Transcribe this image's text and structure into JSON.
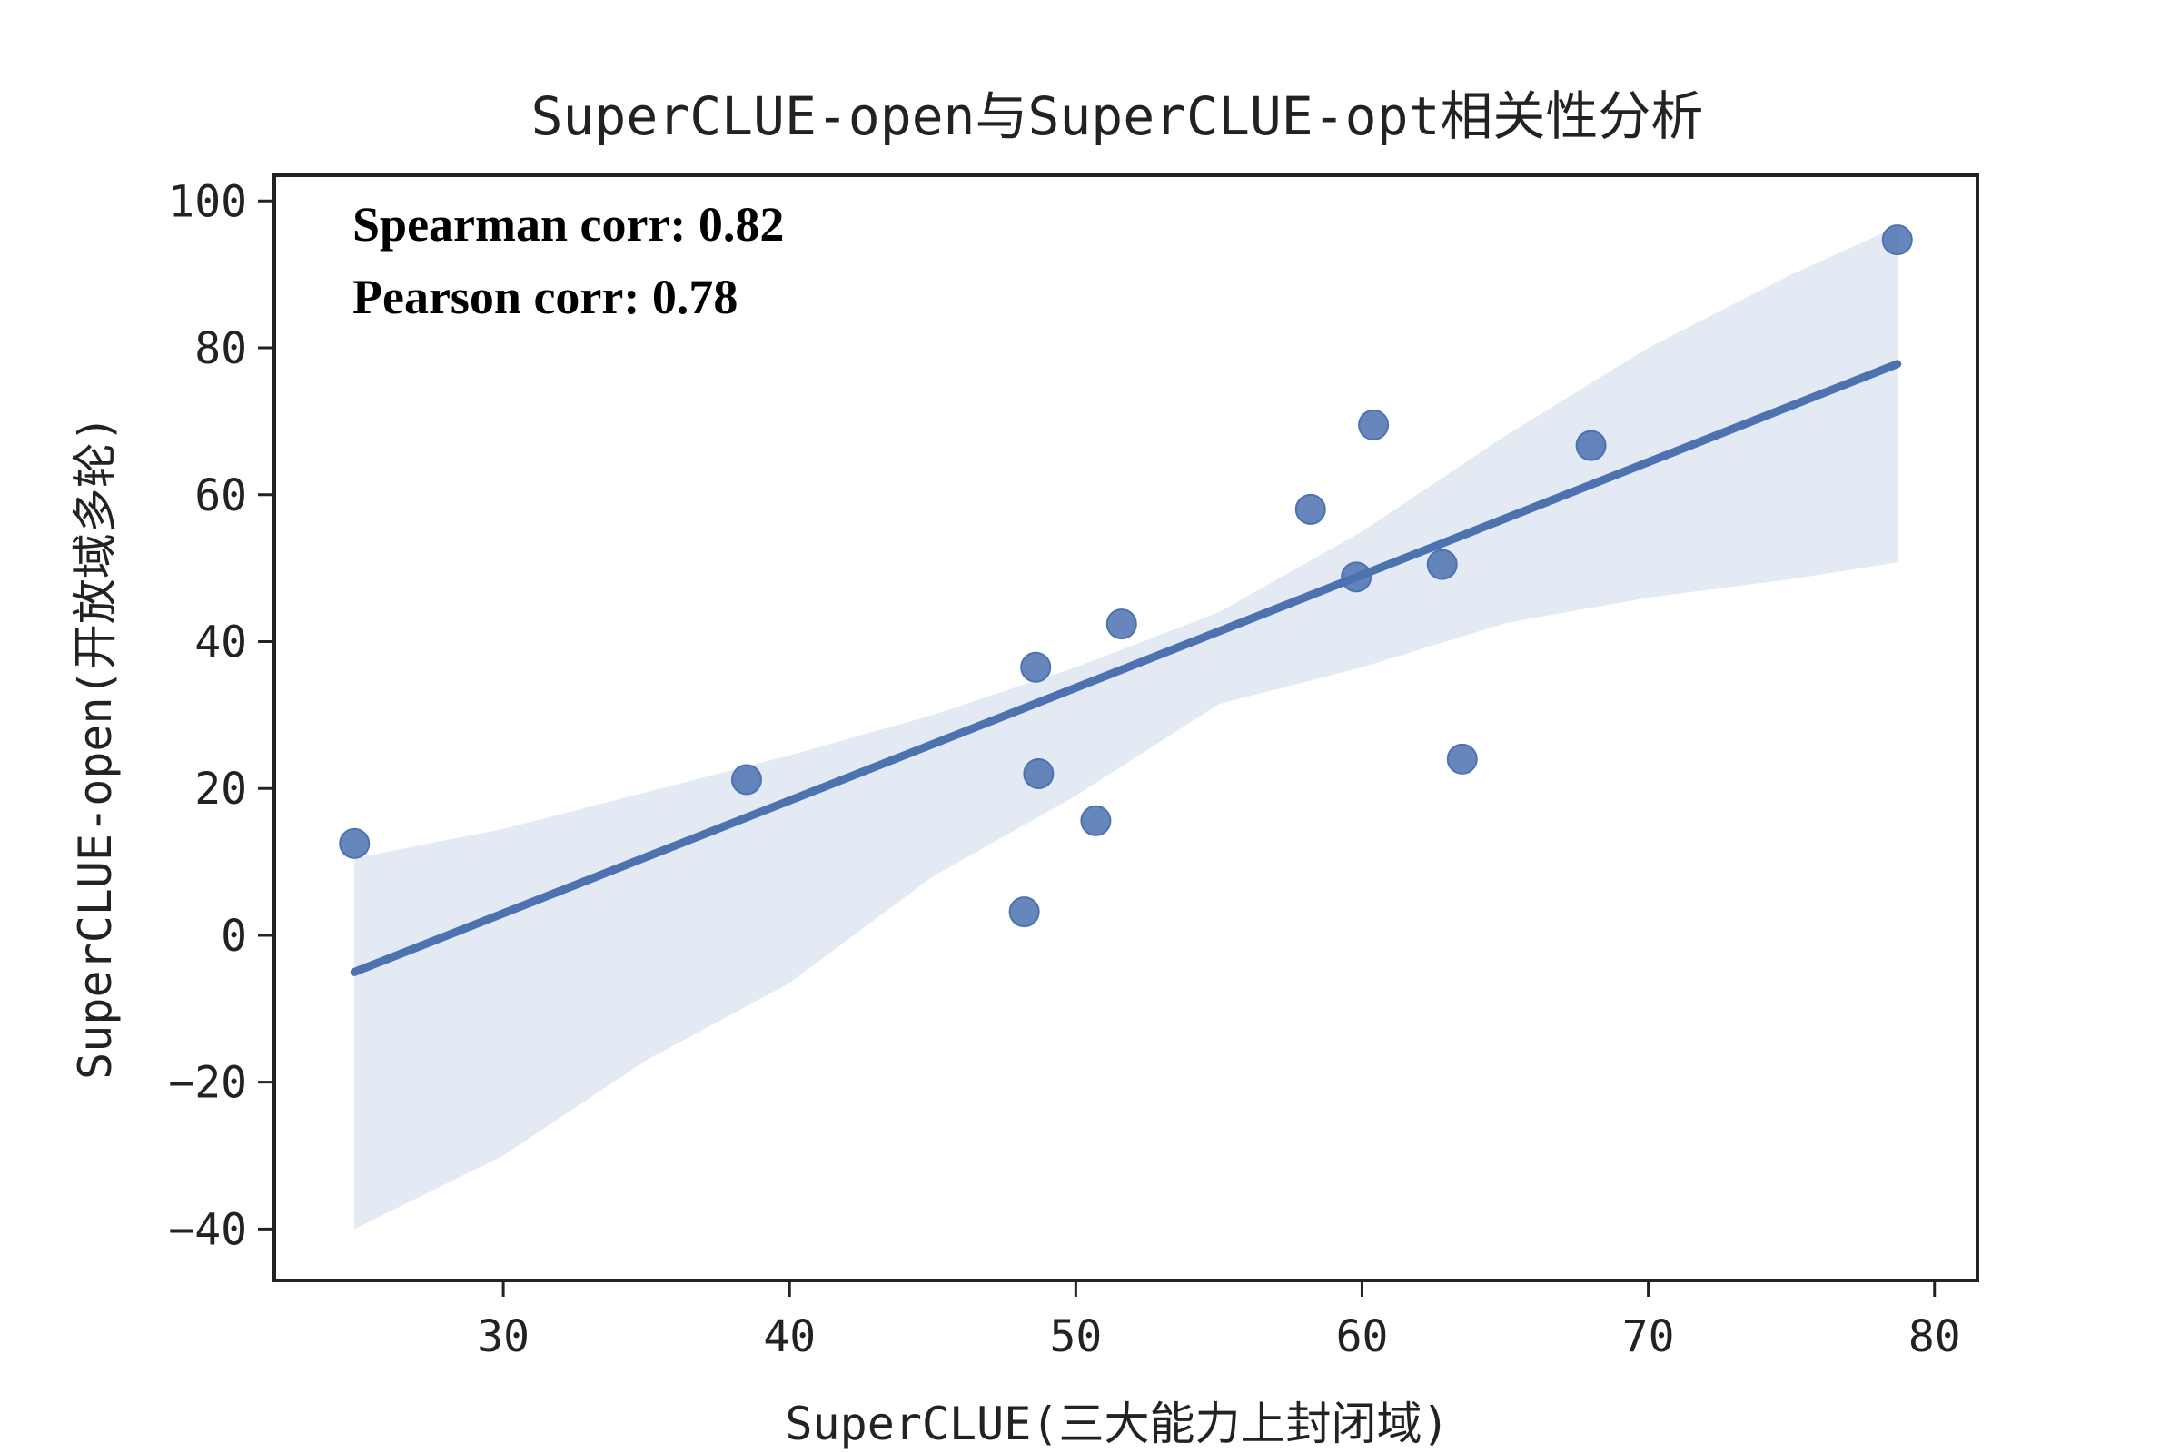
{
  "chart_data": {
    "type": "scatter",
    "title": "SuperCLUE-open与SuperCLUE-opt相关性分析",
    "xlabel": "SuperCLUE(三大能力上封闭域)",
    "ylabel": "SuperCLUE-open(开放域多轮)",
    "xlim": [
      22,
      81.5
    ],
    "ylim": [
      -47,
      103.5
    ],
    "xticks": [
      30,
      40,
      50,
      60,
      70,
      80
    ],
    "yticks": [
      100,
      80,
      60,
      40,
      20,
      0,
      -20,
      -40
    ],
    "ytick_labels": [
      "100",
      "80",
      "60",
      "40",
      "20",
      "0",
      "−20",
      "−40"
    ],
    "grid": false,
    "annotations": [
      "Spearman corr: 0.82",
      "Pearson corr: 0.78"
    ],
    "points": [
      {
        "x": 24.8,
        "y": 12.5
      },
      {
        "x": 38.5,
        "y": 21.2
      },
      {
        "x": 48.2,
        "y": 3.2
      },
      {
        "x": 48.6,
        "y": 36.5
      },
      {
        "x": 48.7,
        "y": 22.0
      },
      {
        "x": 50.7,
        "y": 15.6
      },
      {
        "x": 51.6,
        "y": 42.4
      },
      {
        "x": 58.2,
        "y": 58.0
      },
      {
        "x": 59.8,
        "y": 48.8
      },
      {
        "x": 60.4,
        "y": 69.5
      },
      {
        "x": 62.8,
        "y": 50.5
      },
      {
        "x": 63.5,
        "y": 24.0
      },
      {
        "x": 68.0,
        "y": 66.7
      },
      {
        "x": 78.7,
        "y": 94.7
      }
    ],
    "regression": {
      "x": [
        24.8,
        78.7
      ],
      "y": [
        -5.0,
        77.8
      ]
    },
    "confidence_band": {
      "x": [
        24.8,
        30,
        35,
        40,
        45,
        50,
        55,
        60,
        65,
        70,
        75,
        78.7
      ],
      "upper": [
        10.5,
        14.5,
        19.5,
        24.5,
        30.0,
        36.5,
        44.0,
        55.0,
        68.0,
        80.0,
        90.0,
        96.5
      ],
      "lower": [
        -40.0,
        -30.0,
        -17.0,
        -6.5,
        8.0,
        19.0,
        31.5,
        36.5,
        42.5,
        46.0,
        48.5,
        50.8
      ]
    },
    "colors": {
      "point": "#4c72b0",
      "line": "#4c72b0",
      "band": "#e4eaf4",
      "axis": "#222222"
    }
  }
}
